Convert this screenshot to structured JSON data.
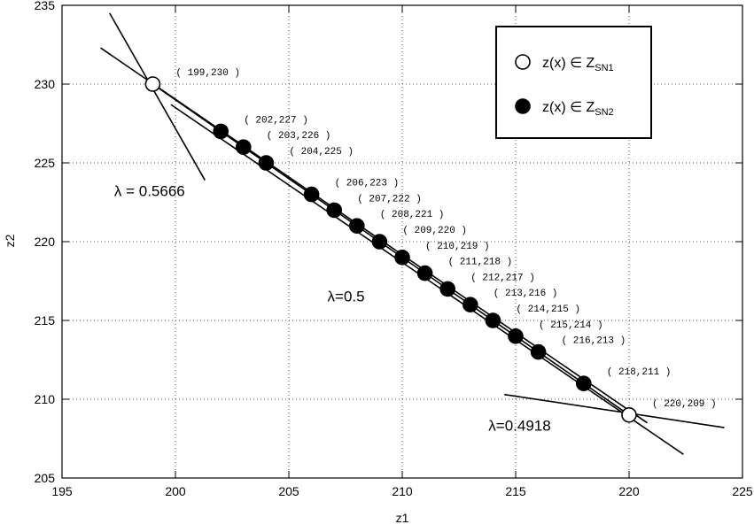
{
  "chart_data": {
    "type": "scatter",
    "xlabel": "z1",
    "ylabel": "z2",
    "xlim": [
      195,
      225
    ],
    "ylim": [
      205,
      235
    ],
    "x_ticks": [
      "195",
      "200",
      "205",
      "210",
      "215",
      "220",
      "225"
    ],
    "y_ticks": [
      "205",
      "210",
      "215",
      "220",
      "225",
      "230",
      "235"
    ],
    "grid": true,
    "legend_position": "top-right",
    "series": [
      {
        "name": "z(x) ∈ Z",
        "name_sub": "SN1",
        "marker": "open-circle",
        "points": [
          {
            "x": 199,
            "y": 230,
            "label": "( 199,230 )"
          },
          {
            "x": 220,
            "y": 209,
            "label": "( 220,209 )"
          }
        ]
      },
      {
        "name": "z(x) ∈ Z",
        "name_sub": "SN2",
        "marker": "filled-circle",
        "points": [
          {
            "x": 202,
            "y": 227,
            "label": "( 202,227 )"
          },
          {
            "x": 203,
            "y": 226,
            "label": "( 203,226 )"
          },
          {
            "x": 204,
            "y": 225,
            "label": "( 204,225 )"
          },
          {
            "x": 206,
            "y": 223,
            "label": "( 206,223 )"
          },
          {
            "x": 207,
            "y": 222,
            "label": "( 207,222 )"
          },
          {
            "x": 208,
            "y": 221,
            "label": "( 208,221 )"
          },
          {
            "x": 209,
            "y": 220,
            "label": "( 209,220 )"
          },
          {
            "x": 210,
            "y": 219,
            "label": "( 210,219 )"
          },
          {
            "x": 211,
            "y": 218,
            "label": "( 211,218 )"
          },
          {
            "x": 212,
            "y": 217,
            "label": "( 212,217 )"
          },
          {
            "x": 213,
            "y": 216,
            "label": "( 213,216 )"
          },
          {
            "x": 214,
            "y": 215,
            "label": "( 214,215 )"
          },
          {
            "x": 215,
            "y": 214,
            "label": "( 215,214 )"
          },
          {
            "x": 216,
            "y": 213,
            "label": "( 216,213 )"
          },
          {
            "x": 218,
            "y": 211,
            "label": "( 218,211 )"
          }
        ]
      }
    ],
    "lines": [
      {
        "name": "λ=0.5",
        "from": [
          199,
          230
        ],
        "to": [
          220,
          209
        ]
      },
      {
        "name": "λ = 0.5666",
        "from": [
          197.1,
          234.5
        ],
        "to": [
          201.3,
          223.9
        ]
      },
      {
        "name": "λ = 0.5666 (b)",
        "from": [
          196.7,
          232.3
        ],
        "to": [
          220.8,
          208.5
        ]
      },
      {
        "name": "λ=0.4918",
        "from": [
          214.5,
          210.3
        ],
        "to": [
          224.2,
          208.2
        ]
      },
      {
        "name": "λ=0.4918 (b)",
        "from": [
          199.8,
          228.7
        ],
        "to": [
          222.4,
          206.5
        ]
      }
    ],
    "annotations": [
      {
        "text": "λ = 0.5666",
        "x": 197.3,
        "y": 222.9
      },
      {
        "text": "λ=0.5",
        "x": 206.7,
        "y": 216.2
      },
      {
        "text": "λ=0.4918",
        "x": 213.8,
        "y": 208.0
      }
    ]
  }
}
